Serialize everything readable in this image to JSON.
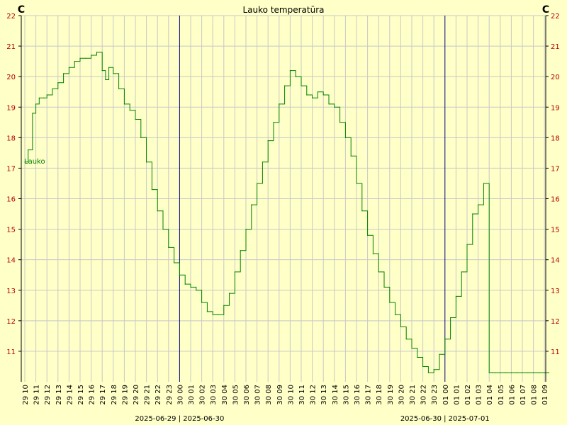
{
  "chart_data": {
    "type": "line",
    "title": "Lauko temperatūra",
    "y_unit_left": "C",
    "y_unit_right": "C",
    "ylim": [
      10,
      22
    ],
    "yticks": [
      11,
      12,
      13,
      14,
      15,
      16,
      17,
      18,
      19,
      20,
      21,
      22
    ],
    "grid": true,
    "hour_ticks": [
      "29 10",
      "29 11",
      "29 12",
      "29 13",
      "29 14",
      "29 15",
      "29 16",
      "29 17",
      "29 18",
      "29 19",
      "29 20",
      "29 21",
      "29 22",
      "29 23",
      "30 00",
      "30 01",
      "30 02",
      "30 03",
      "30 04",
      "30 05",
      "30 06",
      "30 07",
      "30 08",
      "30 09",
      "30 10",
      "30 11",
      "30 12",
      "30 13",
      "30 14",
      "30 15",
      "30 16",
      "30 17",
      "30 18",
      "30 19",
      "30 20",
      "30 21",
      "30 22",
      "30 23",
      "01 00",
      "01 01",
      "01 02",
      "01 03",
      "01 04",
      "01 05",
      "01 06",
      "01 07",
      "01 08",
      "01 09"
    ],
    "day_boundaries": [
      {
        "tick": "30 00",
        "label": "2025-06-29  |  2025-06-30"
      },
      {
        "tick": "01 00",
        "label": "2025-06-30  |  2025-07-01"
      }
    ],
    "series": [
      {
        "name": "Lauko",
        "color": "#008000",
        "x": [
          0,
          0.3,
          0.7,
          1.0,
          1.3,
          1.7,
          2.0,
          2.5,
          3.0,
          3.5,
          4.0,
          4.5,
          5.0,
          5.5,
          6.0,
          6.5,
          7.0,
          7.3,
          7.6,
          8.0,
          8.5,
          9.0,
          9.5,
          10.0,
          10.5,
          11.0,
          11.5,
          12.0,
          12.5,
          13.0,
          13.5,
          14.0,
          14.5,
          15.0,
          15.5,
          16.0,
          16.5,
          17.0,
          17.5,
          18.0,
          18.5,
          19.0,
          19.5,
          20.0,
          20.5,
          21.0,
          21.5,
          22.0,
          22.5,
          23.0,
          23.5,
          24.0,
          24.5,
          25.0,
          25.5,
          26.0,
          26.5,
          27.0,
          27.5,
          28.0,
          28.5,
          29.0,
          29.5,
          30.0,
          30.5,
          31.0,
          31.5,
          32.0,
          32.5,
          33.0,
          33.5,
          34.0,
          34.5,
          35.0,
          35.5,
          36.0,
          36.5,
          37.0,
          37.5,
          38.0,
          38.5,
          39.0,
          39.5,
          40.0,
          40.5,
          41.0,
          41.5,
          42.0,
          42.3,
          42.6,
          43.0,
          43.5,
          44.0,
          44.5,
          45.0,
          45.5,
          46.0,
          46.5,
          47.0,
          47.4
        ],
        "y": [
          17.2,
          17.6,
          18.8,
          19.1,
          19.3,
          19.3,
          19.4,
          19.6,
          19.8,
          20.1,
          20.3,
          20.5,
          20.6,
          20.6,
          20.7,
          20.8,
          20.2,
          19.9,
          20.3,
          20.1,
          19.6,
          19.1,
          18.9,
          18.6,
          18.0,
          17.2,
          16.3,
          15.6,
          15.0,
          14.4,
          13.9,
          13.5,
          13.2,
          13.1,
          13.0,
          12.6,
          12.3,
          12.2,
          12.2,
          12.5,
          12.9,
          13.6,
          14.3,
          15.0,
          15.8,
          16.5,
          17.2,
          17.9,
          18.5,
          19.1,
          19.7,
          20.2,
          20.0,
          19.7,
          19.4,
          19.3,
          19.5,
          19.4,
          19.1,
          19.0,
          18.5,
          18.0,
          17.4,
          16.5,
          15.6,
          14.8,
          14.2,
          13.6,
          13.1,
          12.6,
          12.2,
          11.8,
          11.4,
          11.1,
          10.8,
          10.5,
          10.3,
          10.4,
          10.9,
          11.4,
          12.1,
          12.8,
          13.6,
          14.5,
          15.5,
          15.8,
          16.5,
          10.3,
          10.3,
          10.3,
          10.3,
          10.3,
          10.3,
          10.3,
          10.3,
          10.3,
          10.3,
          10.3,
          10.3,
          10.3
        ]
      }
    ]
  }
}
